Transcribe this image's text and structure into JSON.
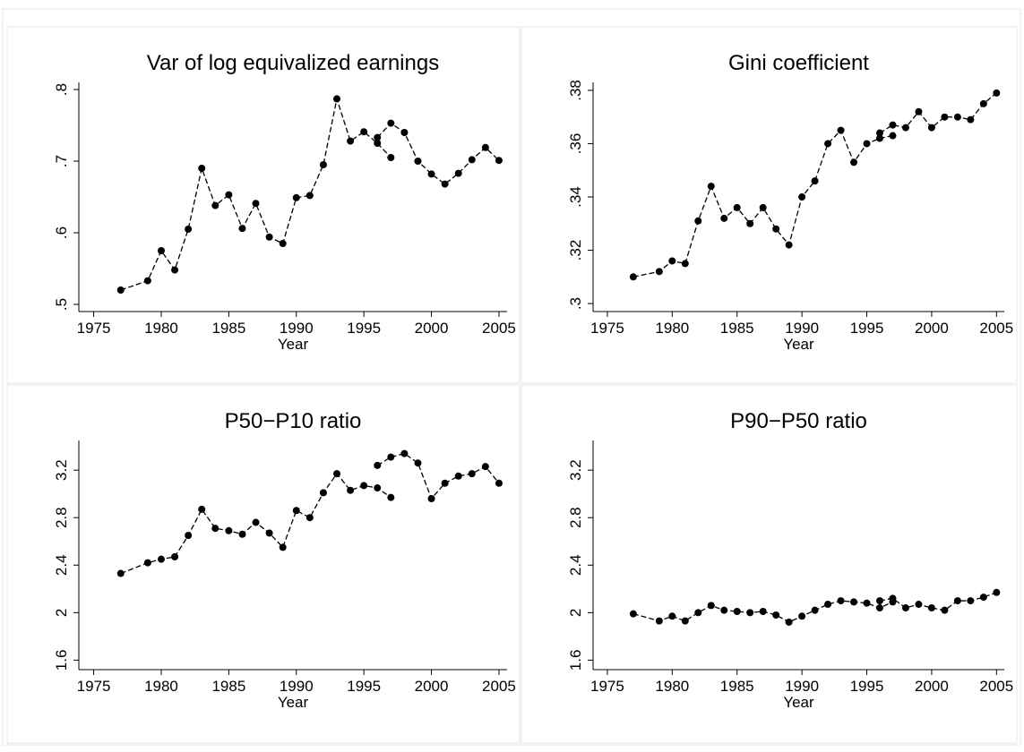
{
  "chart_data": [
    {
      "type": "line",
      "title": "Var of log equivalized earnings",
      "x_label": "Year",
      "color": "#000000",
      "line_style": "dashed",
      "x": [
        1977,
        1979,
        1980,
        1981,
        1982,
        1983,
        1984,
        1985,
        1986,
        1987,
        1988,
        1989,
        1990,
        1991,
        1992,
        1993,
        1994,
        1995,
        1996,
        1997,
        null,
        1996,
        1997,
        1998,
        1999,
        2000,
        2001,
        2002,
        2003,
        2004,
        2005
      ],
      "values": [
        0.52,
        0.533,
        0.575,
        0.548,
        0.605,
        0.69,
        0.638,
        0.653,
        0.606,
        0.641,
        0.594,
        0.585,
        0.649,
        0.652,
        0.695,
        0.787,
        0.728,
        0.741,
        0.725,
        0.705,
        null,
        0.733,
        0.753,
        0.74,
        0.7,
        0.682,
        0.668,
        0.683,
        0.702,
        0.719,
        0.701
      ],
      "xlim": [
        1973.9,
        2005.6
      ],
      "xticks": [
        1975,
        1980,
        1985,
        1990,
        1995,
        2000,
        2005
      ],
      "ylim": [
        0.49,
        0.81
      ],
      "yticks": [
        {
          "value": 0.5,
          "label": ".5"
        },
        {
          "value": 0.6,
          "label": ".6"
        },
        {
          "value": 0.7,
          "label": ".7"
        },
        {
          "value": 0.8,
          "label": ".8"
        }
      ]
    },
    {
      "type": "line",
      "title": "Gini coefficient",
      "x_label": "Year",
      "color": "#000000",
      "line_style": "dashed",
      "x": [
        1977,
        1979,
        1980,
        1981,
        1982,
        1983,
        1984,
        1985,
        1986,
        1987,
        1988,
        1989,
        1990,
        1991,
        1992,
        1993,
        1994,
        1995,
        1996,
        1997,
        null,
        1996,
        1997,
        1998,
        1999,
        2000,
        2001,
        2002,
        2003,
        2004,
        2005
      ],
      "values": [
        0.31,
        0.312,
        0.316,
        0.315,
        0.331,
        0.344,
        0.332,
        0.336,
        0.33,
        0.336,
        0.328,
        0.322,
        0.34,
        0.346,
        0.36,
        0.365,
        0.353,
        0.36,
        0.362,
        0.363,
        null,
        0.364,
        0.367,
        0.366,
        0.372,
        0.366,
        0.37,
        0.37,
        0.369,
        0.375,
        0.379
      ],
      "xlim": [
        1973.9,
        2005.6
      ],
      "xticks": [
        1975,
        1980,
        1985,
        1990,
        1995,
        2000,
        2005
      ],
      "ylim": [
        0.297,
        0.383
      ],
      "yticks": [
        {
          "value": 0.3,
          "label": ".3"
        },
        {
          "value": 0.32,
          "label": ".32"
        },
        {
          "value": 0.34,
          "label": ".34"
        },
        {
          "value": 0.36,
          "label": ".36"
        },
        {
          "value": 0.38,
          "label": ".38"
        }
      ]
    },
    {
      "type": "line",
      "title": "P50−P10 ratio",
      "x_label": "Year",
      "color": "#000000",
      "line_style": "dashed",
      "x": [
        1977,
        1979,
        1980,
        1981,
        1982,
        1983,
        1984,
        1985,
        1986,
        1987,
        1988,
        1989,
        1990,
        1991,
        1992,
        1993,
        1994,
        1995,
        1996,
        1997,
        null,
        1996,
        1997,
        1998,
        1999,
        2000,
        2001,
        2002,
        2003,
        2004,
        2005
      ],
      "values": [
        2.33,
        2.42,
        2.45,
        2.47,
        2.65,
        2.87,
        2.71,
        2.69,
        2.66,
        2.76,
        2.67,
        2.55,
        2.86,
        2.8,
        3.01,
        3.17,
        3.03,
        3.07,
        3.05,
        2.97,
        null,
        3.24,
        3.31,
        3.34,
        3.26,
        2.96,
        3.09,
        3.15,
        3.17,
        3.23,
        3.09
      ],
      "xlim": [
        1973.9,
        2005.6
      ],
      "xticks": [
        1975,
        1980,
        1985,
        1990,
        1995,
        2000,
        2005
      ],
      "ylim": [
        1.52,
        3.45
      ],
      "yticks": [
        1.6,
        2,
        2.4,
        2.8,
        3.2
      ]
    },
    {
      "type": "line",
      "title": "P90−P50 ratio",
      "x_label": "Year",
      "color": "#000000",
      "line_style": "dashed",
      "x": [
        1977,
        1979,
        1980,
        1981,
        1982,
        1983,
        1984,
        1985,
        1986,
        1987,
        1988,
        1989,
        1990,
        1991,
        1992,
        1993,
        1994,
        1995,
        1996,
        1997,
        null,
        1996,
        1997,
        1998,
        1999,
        2000,
        2001,
        2002,
        2003,
        2004,
        2005
      ],
      "values": [
        1.99,
        1.93,
        1.97,
        1.93,
        2.0,
        2.06,
        2.02,
        2.01,
        2.0,
        2.01,
        1.98,
        1.92,
        1.97,
        2.02,
        2.07,
        2.1,
        2.09,
        2.08,
        2.04,
        2.09,
        null,
        2.1,
        2.12,
        2.04,
        2.07,
        2.04,
        2.02,
        2.1,
        2.1,
        2.13,
        2.17
      ],
      "xlim": [
        1973.9,
        2005.6
      ],
      "xticks": [
        1975,
        1980,
        1985,
        1990,
        1995,
        2000,
        2005
      ],
      "ylim": [
        1.52,
        3.45
      ],
      "yticks": [
        1.6,
        2,
        2.4,
        2.8,
        3.2
      ]
    }
  ]
}
